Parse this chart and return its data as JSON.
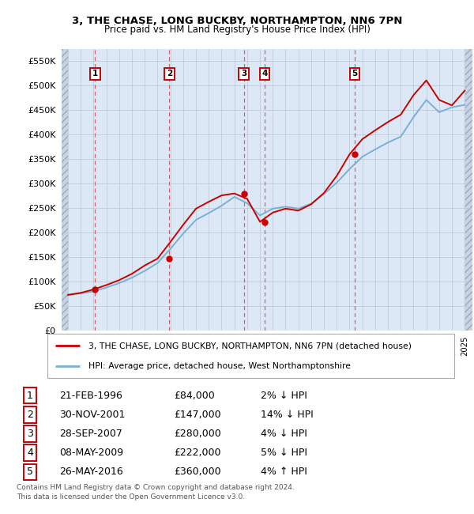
{
  "title": "3, THE CHASE, LONG BUCKBY, NORTHAMPTON, NN6 7PN",
  "subtitle": "Price paid vs. HM Land Registry's House Price Index (HPI)",
  "legend_label_red": "3, THE CHASE, LONG BUCKBY, NORTHAMPTON, NN6 7PN (detached house)",
  "legend_label_blue": "HPI: Average price, detached house, West Northamptonshire",
  "footer1": "Contains HM Land Registry data © Crown copyright and database right 2024.",
  "footer2": "This data is licensed under the Open Government Licence v3.0.",
  "ylim": [
    0,
    575000
  ],
  "yticks": [
    0,
    50000,
    100000,
    150000,
    200000,
    250000,
    300000,
    350000,
    400000,
    450000,
    500000,
    550000
  ],
  "xlim_start": 1993.5,
  "xlim_end": 2025.6,
  "hatch_left_end": 1994.0,
  "hatch_right_start": 2025.0,
  "sales": [
    {
      "year": 1996.12,
      "price": 84000,
      "label": "1"
    },
    {
      "year": 2001.92,
      "price": 147000,
      "label": "2"
    },
    {
      "year": 2007.74,
      "price": 280000,
      "label": "3"
    },
    {
      "year": 2009.36,
      "price": 222000,
      "label": "4"
    },
    {
      "year": 2016.4,
      "price": 360000,
      "label": "5"
    }
  ],
  "table_rows": [
    {
      "num": "1",
      "date": "21-FEB-1996",
      "price": "£84,000",
      "hpi": "2% ↓ HPI"
    },
    {
      "num": "2",
      "date": "30-NOV-2001",
      "price": "£147,000",
      "hpi": "14% ↓ HPI"
    },
    {
      "num": "3",
      "date": "28-SEP-2007",
      "price": "£280,000",
      "hpi": "4% ↓ HPI"
    },
    {
      "num": "4",
      "date": "08-MAY-2009",
      "price": "£222,000",
      "hpi": "5% ↓ HPI"
    },
    {
      "num": "5",
      "date": "26-MAY-2016",
      "price": "£360,000",
      "hpi": "4% ↑ HPI"
    }
  ],
  "hpi_line_years": [
    1994,
    1995,
    1996,
    1997,
    1998,
    1999,
    2000,
    2001,
    2002,
    2003,
    2004,
    2005,
    2006,
    2007,
    2008,
    2009,
    2010,
    2011,
    2012,
    2013,
    2014,
    2015,
    2016,
    2017,
    2018,
    2019,
    2020,
    2021,
    2022,
    2023,
    2024,
    2025
  ],
  "hpi_line_values": [
    72000,
    76000,
    80000,
    88000,
    97000,
    108000,
    122000,
    138000,
    167000,
    198000,
    226000,
    240000,
    255000,
    273000,
    260000,
    235000,
    249000,
    253000,
    249000,
    259000,
    279000,
    302000,
    330000,
    355000,
    370000,
    384000,
    396000,
    436000,
    471000,
    446000,
    456000,
    461000
  ],
  "pp_line_years": [
    1994,
    1995,
    1996,
    1997,
    1998,
    1999,
    2000,
    2001,
    2002,
    2003,
    2004,
    2005,
    2006,
    2007,
    2008,
    2009,
    2010,
    2011,
    2012,
    2013,
    2014,
    2015,
    2016,
    2017,
    2018,
    2019,
    2020,
    2021,
    2022,
    2023,
    2024,
    2025
  ],
  "pp_line_values": [
    73000,
    77000,
    84000,
    93000,
    103000,
    116000,
    133000,
    147000,
    181000,
    216000,
    249000,
    263000,
    276000,
    280000,
    269000,
    222000,
    241000,
    249000,
    245000,
    258000,
    281000,
    316000,
    360000,
    391000,
    409000,
    426000,
    441000,
    481000,
    511000,
    471000,
    460000,
    490000
  ],
  "bg_plot_color": "#dce8f5",
  "bg_hatch_color": "#c8d4e4",
  "grid_color": "#b8c8d8",
  "red_color": "#cc0000",
  "blue_color": "#7ab0d4",
  "dashed_line_color": "#e05050"
}
